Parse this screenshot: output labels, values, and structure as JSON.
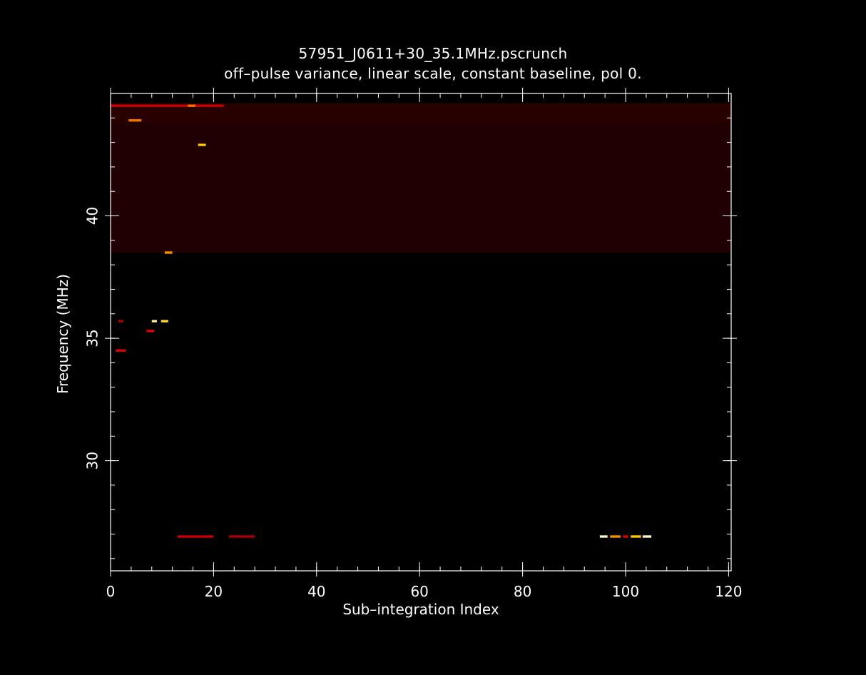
{
  "chart_data": {
    "type": "heatmap",
    "title": "57951_J0611+30_35.1MHz.pscrunch",
    "subtitle": "off–pulse variance, linear scale, constant baseline, pol 0.",
    "xlabel": "Sub–integration Index",
    "ylabel": "Frequency (MHz)",
    "xlim": [
      0,
      120.5
    ],
    "ylim": [
      25.5,
      45
    ],
    "x_ticks": [
      0,
      20,
      40,
      60,
      80,
      100,
      120
    ],
    "x_tick_labels": [
      "0",
      "20",
      "40",
      "60",
      "80",
      "100",
      "120"
    ],
    "x_minor_step": 4,
    "y_ticks": [
      30,
      35,
      40
    ],
    "y_tick_labels": [
      "30",
      "35",
      "40"
    ],
    "y_minor_step": 1,
    "grid": false,
    "colormap": "black-red-yellow-white",
    "background_bands": [
      {
        "y_from": 38.5,
        "y_to": 43.8,
        "intensity": 0.055
      },
      {
        "y_from": 43.8,
        "y_to": 44.6,
        "intensity": 0.07
      }
    ],
    "hot_pixels": [
      {
        "x_from": 0,
        "x_to": 22,
        "y": 44.5,
        "intensity": 0.35
      },
      {
        "x_from": 15,
        "x_to": 16.5,
        "y": 44.5,
        "intensity": 0.6
      },
      {
        "x_from": 3.5,
        "x_to": 6,
        "y": 43.9,
        "intensity": 0.6
      },
      {
        "x_from": 17,
        "x_to": 18.5,
        "y": 42.9,
        "intensity": 0.75
      },
      {
        "x_from": 10.5,
        "x_to": 12,
        "y": 38.5,
        "intensity": 0.65
      },
      {
        "x_from": 8,
        "x_to": 9,
        "y": 35.7,
        "intensity": 0.9
      },
      {
        "x_from": 9.8,
        "x_to": 11.2,
        "y": 35.7,
        "intensity": 0.8
      },
      {
        "x_from": 7,
        "x_to": 8.5,
        "y": 35.3,
        "intensity": 0.4
      },
      {
        "x_from": 1,
        "x_to": 3,
        "y": 34.5,
        "intensity": 0.4
      },
      {
        "x_from": 1.5,
        "x_to": 2.5,
        "y": 35.7,
        "intensity": 0.3
      },
      {
        "x_from": 13,
        "x_to": 20,
        "y": 26.9,
        "intensity": 0.35
      },
      {
        "x_from": 23,
        "x_to": 28,
        "y": 26.9,
        "intensity": 0.3
      },
      {
        "x_from": 95,
        "x_to": 96.5,
        "y": 26.9,
        "intensity": 0.95
      },
      {
        "x_from": 97,
        "x_to": 99,
        "y": 26.9,
        "intensity": 0.65
      },
      {
        "x_from": 99.5,
        "x_to": 100.5,
        "y": 26.9,
        "intensity": 0.4
      },
      {
        "x_from": 101,
        "x_to": 103,
        "y": 26.9,
        "intensity": 0.75
      },
      {
        "x_from": 103.3,
        "x_to": 105,
        "y": 26.9,
        "intensity": 0.95
      }
    ]
  }
}
